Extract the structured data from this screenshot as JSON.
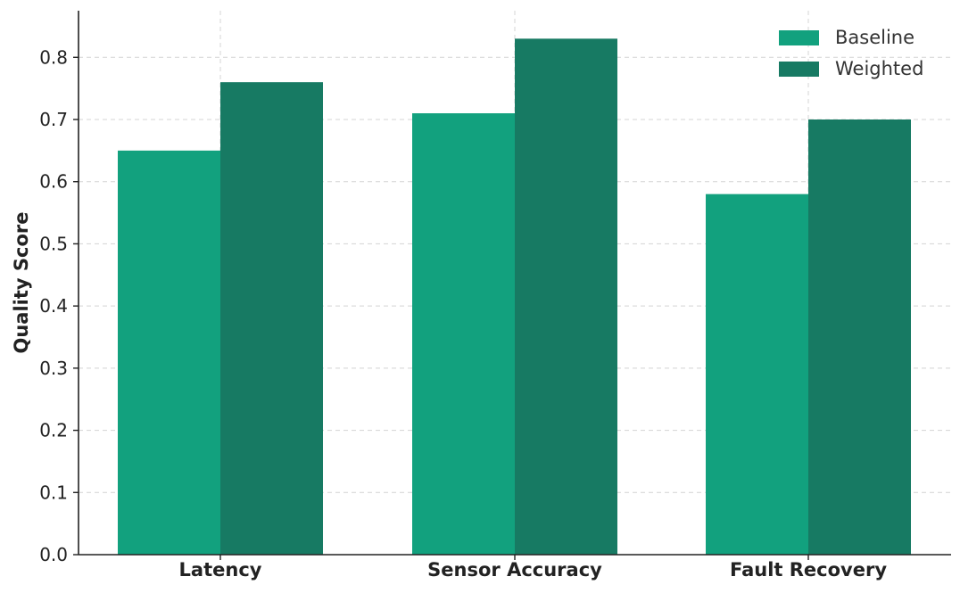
{
  "chart_data": {
    "type": "bar",
    "title": "",
    "xlabel": "",
    "ylabel": "Quality Score",
    "categories": [
      "Latency",
      "Sensor Accuracy",
      "Fault Recovery"
    ],
    "series": [
      {
        "name": "Baseline",
        "values": [
          0.65,
          0.71,
          0.58
        ],
        "color": "#12a17e"
      },
      {
        "name": "Weighted",
        "values": [
          0.76,
          0.83,
          0.7
        ],
        "color": "#177a63"
      }
    ],
    "ylim": [
      0,
      0.875
    ],
    "yticks": [
      "0.0",
      "0.1",
      "0.2",
      "0.3",
      "0.4",
      "0.5",
      "0.6",
      "0.7",
      "0.8"
    ],
    "grid": true,
    "legend_position": "top-right"
  }
}
